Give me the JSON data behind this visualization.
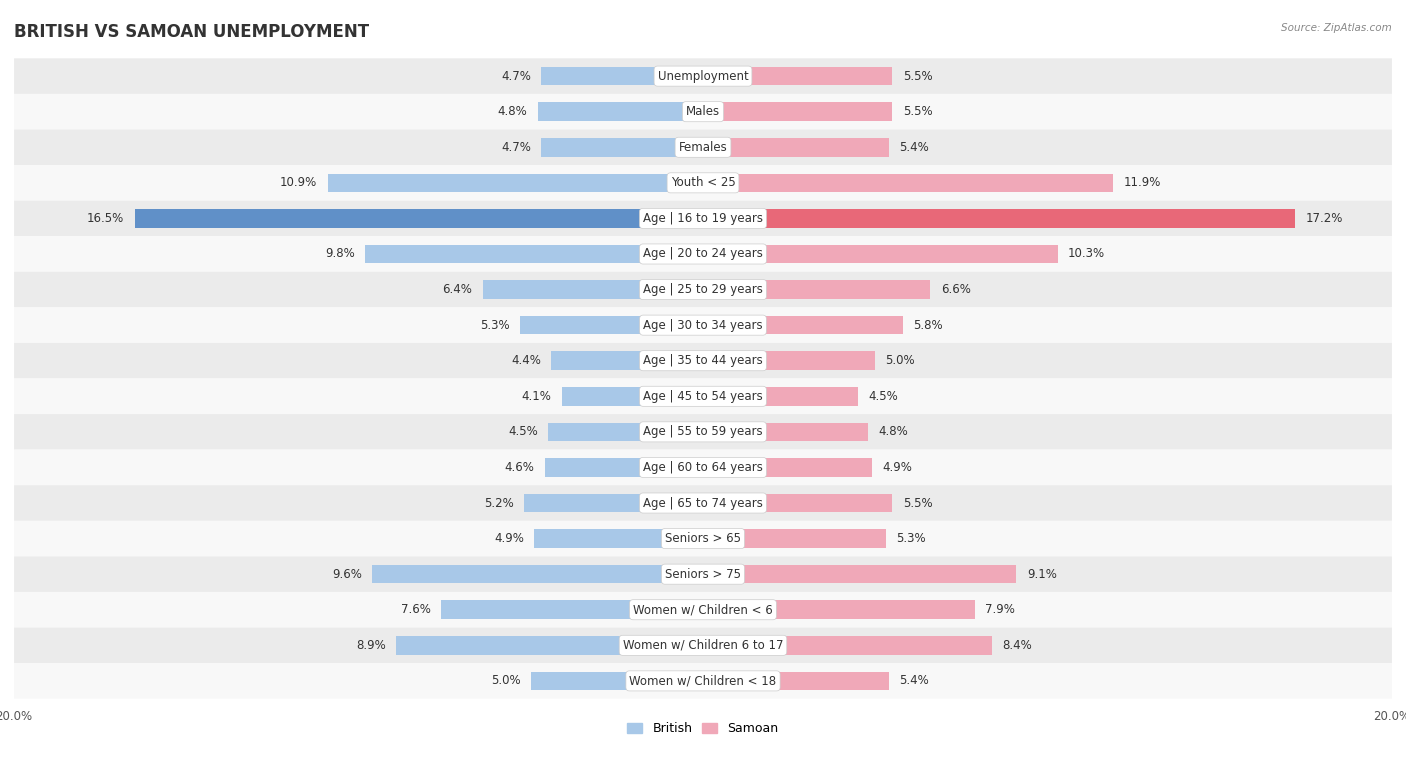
{
  "title": "BRITISH VS SAMOAN UNEMPLOYMENT",
  "source": "Source: ZipAtlas.com",
  "categories": [
    "Unemployment",
    "Males",
    "Females",
    "Youth < 25",
    "Age | 16 to 19 years",
    "Age | 20 to 24 years",
    "Age | 25 to 29 years",
    "Age | 30 to 34 years",
    "Age | 35 to 44 years",
    "Age | 45 to 54 years",
    "Age | 55 to 59 years",
    "Age | 60 to 64 years",
    "Age | 65 to 74 years",
    "Seniors > 65",
    "Seniors > 75",
    "Women w/ Children < 6",
    "Women w/ Children 6 to 17",
    "Women w/ Children < 18"
  ],
  "british": [
    4.7,
    4.8,
    4.7,
    10.9,
    16.5,
    9.8,
    6.4,
    5.3,
    4.4,
    4.1,
    4.5,
    4.6,
    5.2,
    4.9,
    9.6,
    7.6,
    8.9,
    5.0
  ],
  "samoan": [
    5.5,
    5.5,
    5.4,
    11.9,
    17.2,
    10.3,
    6.6,
    5.8,
    5.0,
    4.5,
    4.8,
    4.9,
    5.5,
    5.3,
    9.1,
    7.9,
    8.4,
    5.4
  ],
  "british_color": "#a8c8e8",
  "samoan_color": "#f0a8b8",
  "highlight_british_color": "#6090c8",
  "highlight_samoan_color": "#e86878",
  "highlight_row": 4,
  "bar_height": 0.52,
  "bg_color_odd": "#ebebeb",
  "bg_color_even": "#f8f8f8",
  "xlim": 20.0,
  "label_fontsize": 8.5,
  "category_fontsize": 8.5,
  "title_fontsize": 12,
  "axis_label_fontsize": 8.5,
  "legend_fontsize": 9
}
